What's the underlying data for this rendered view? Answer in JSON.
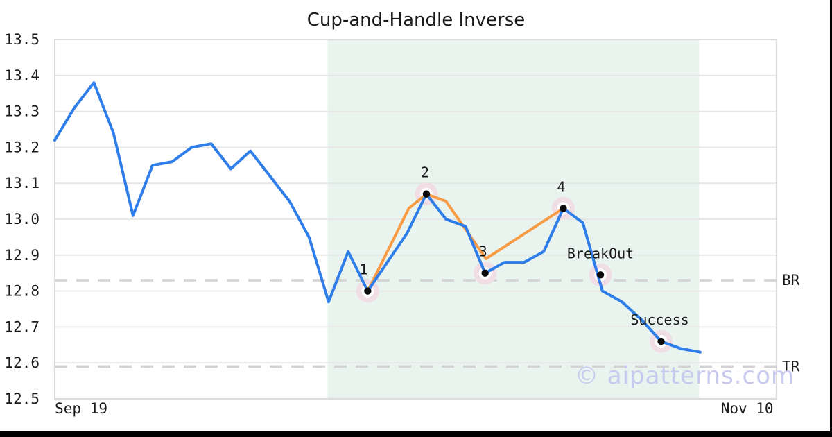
{
  "header": {
    "title": "Cup-and-Handle Inverse"
  },
  "watermark": {
    "text": "© aipatterns.com"
  },
  "colors": {
    "price_line": "#2e7de9",
    "pattern_line": "#f89b45",
    "shade": "#e9f4ef",
    "grid": "#e6e6e6",
    "spine": "#dcdcdc",
    "dashed_level": "#d2d2d2",
    "marker_halo": "#f1dde4",
    "marker_ring": "#ffffff",
    "marker_dot": "#0a0a0a",
    "text": "#1a1a1a",
    "watermark": "#c7c9ee",
    "frame": "#000000"
  },
  "axes": {
    "yticks": [
      "13.5",
      "13.4",
      "13.3",
      "13.2",
      "13.1",
      "13.0",
      "12.9",
      "12.8",
      "12.7",
      "12.6",
      "12.5"
    ],
    "xticks": [
      {
        "label": "Sep 19",
        "i": 1.35
      },
      {
        "label": "Nov 10",
        "i": 35.4
      }
    ]
  },
  "chart_data": {
    "type": "line",
    "title": "Cup-and-Handle Inverse",
    "xlabel": "",
    "ylabel": "",
    "ylim": [
      12.5,
      13.5
    ],
    "ytick_step": 0.1,
    "grid": true,
    "legend": false,
    "x_unit": "trading-day-index",
    "x_range_labels": [
      "Sep 19",
      "Nov 10"
    ],
    "series": [
      {
        "name": "price",
        "color": "#2e7de9",
        "values": [
          13.22,
          13.31,
          13.38,
          13.24,
          13.01,
          13.15,
          13.16,
          13.2,
          13.21,
          13.14,
          13.19,
          13.12,
          13.05,
          12.95,
          12.77,
          12.91,
          12.8,
          12.88,
          12.96,
          13.07,
          13.0,
          12.98,
          12.85,
          12.88,
          12.88,
          12.91,
          13.03,
          12.99,
          12.8,
          12.77,
          12.72,
          12.66,
          12.64,
          12.63
        ]
      },
      {
        "name": "pattern-outline",
        "color": "#f89b45",
        "points": [
          [
            16,
            12.8
          ],
          [
            18.1,
            13.03
          ],
          [
            19,
            13.07
          ],
          [
            20,
            13.05
          ],
          [
            22.05,
            12.89
          ],
          [
            26,
            13.03
          ]
        ]
      }
    ],
    "levels": [
      {
        "label": "BR",
        "value": 12.83
      },
      {
        "label": "TR",
        "value": 12.59
      }
    ],
    "markers": [
      {
        "label": "1",
        "i": 16,
        "v": 12.8,
        "dx": -6
      },
      {
        "label": "2",
        "i": 19,
        "v": 13.07,
        "dx": -2
      },
      {
        "label": "3",
        "i": 22,
        "v": 12.85,
        "dx": -3
      },
      {
        "label": "4",
        "i": 26,
        "v": 13.03,
        "dx": -3
      },
      {
        "label": "BreakOut",
        "i": 27.9,
        "v": 12.845,
        "dx": 0
      },
      {
        "label": "Success",
        "i": 31,
        "v": 12.66,
        "dx": -2
      }
    ],
    "pattern_window": {
      "start_i": 13.95,
      "end_i": 32.95
    }
  }
}
